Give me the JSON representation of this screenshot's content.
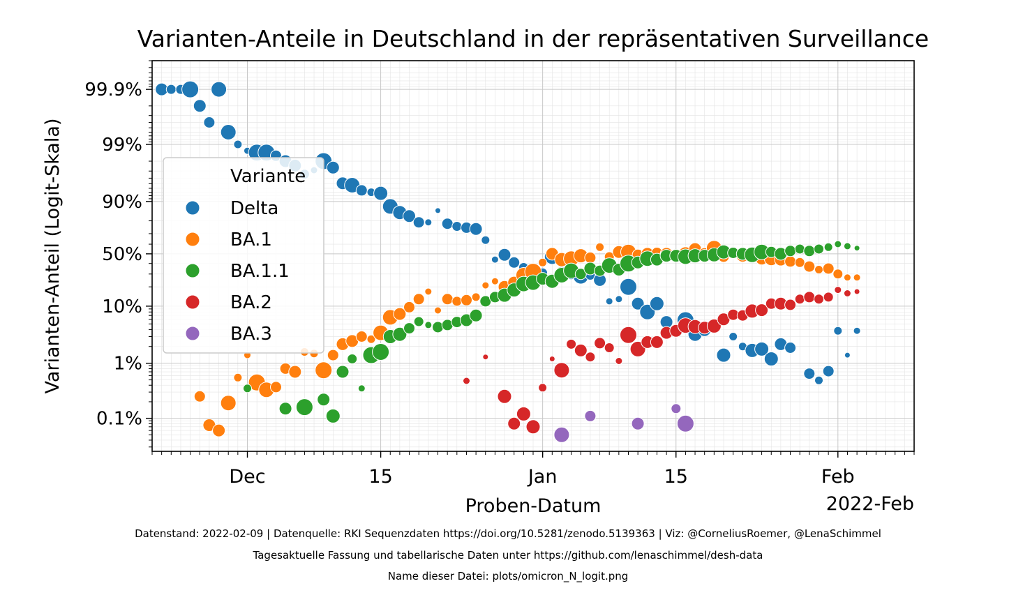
{
  "chart_data": {
    "type": "scatter",
    "title": "Varianten-Anteile in Deutschland in der repräsentativen Surveillance",
    "xlabel": "Proben-Datum",
    "ylabel": "Varianten-Anteil (Logit-Skala)",
    "y_scale": "logit",
    "x_range_days_from_nov1": [
      20,
      100
    ],
    "y_range_percent": [
      0.025,
      99.97
    ],
    "x_ticks": [
      {
        "day": 30,
        "label": "Dec"
      },
      {
        "day": 44,
        "label": "15"
      },
      {
        "day": 61,
        "label": "Jan"
      },
      {
        "day": 75,
        "label": "15"
      },
      {
        "day": 92,
        "label": "Feb"
      }
    ],
    "x_offset_label": "2022-Feb",
    "y_ticks": [
      {
        "value": 0.1,
        "label": "0.1%"
      },
      {
        "value": 1,
        "label": "1%"
      },
      {
        "value": 10,
        "label": "10%"
      },
      {
        "value": 50,
        "label": "50%"
      },
      {
        "value": 90,
        "label": "90%"
      },
      {
        "value": 99,
        "label": "99%"
      },
      {
        "value": 99.9,
        "label": "99.9%"
      }
    ],
    "grid": true,
    "legend": {
      "title": "Variante",
      "position": "center-left",
      "entries": [
        "Delta",
        "BA.1",
        "BA.1.1",
        "BA.2",
        "BA.3"
      ]
    },
    "series": [
      {
        "name": "Delta",
        "color": "#1f77b4",
        "points": [
          [
            21,
            99.9,
            9
          ],
          [
            22,
            99.9,
            7
          ],
          [
            23,
            99.9,
            7
          ],
          [
            24,
            99.9,
            12
          ],
          [
            25,
            99.8,
            9
          ],
          [
            26,
            99.6,
            8
          ],
          [
            27,
            99.9,
            11
          ],
          [
            28,
            99.4,
            11
          ],
          [
            29,
            99.0,
            6
          ],
          [
            30,
            98.7,
            5
          ],
          [
            31,
            98.6,
            12
          ],
          [
            32,
            98.6,
            12
          ],
          [
            33,
            98.4,
            8
          ],
          [
            34,
            98,
            9
          ],
          [
            35,
            97.6,
            9
          ],
          [
            36,
            96.6,
            7
          ],
          [
            37,
            97.1,
            5
          ],
          [
            38,
            98,
            12
          ],
          [
            39,
            97.4,
            9
          ],
          [
            40,
            95.1,
            9
          ],
          [
            41,
            94.7,
            11
          ],
          [
            42,
            93.5,
            8
          ],
          [
            43,
            93,
            6
          ],
          [
            44,
            92.7,
            10
          ],
          [
            45,
            88,
            11
          ],
          [
            46,
            85,
            10
          ],
          [
            47,
            83,
            9
          ],
          [
            48,
            79,
            8
          ],
          [
            49,
            79,
            5
          ],
          [
            50,
            86,
            4
          ],
          [
            51,
            78,
            8
          ],
          [
            52,
            76,
            7
          ],
          [
            53,
            75,
            8
          ],
          [
            54,
            74,
            9
          ],
          [
            55,
            64,
            6
          ],
          [
            56,
            44,
            5
          ],
          [
            57,
            49,
            9
          ],
          [
            58,
            41,
            8
          ],
          [
            59,
            36,
            7
          ],
          [
            60,
            34,
            8
          ],
          [
            61,
            31,
            7
          ],
          [
            62,
            47,
            11
          ],
          [
            63,
            31,
            9
          ],
          [
            64,
            30,
            8
          ],
          [
            65,
            28,
            11
          ],
          [
            66,
            29,
            7
          ],
          [
            67,
            25,
            9
          ],
          [
            68,
            12,
            5
          ],
          [
            69,
            13,
            5
          ],
          [
            70,
            20,
            12
          ],
          [
            71,
            11,
            9
          ],
          [
            72,
            8,
            11
          ],
          [
            73,
            11,
            10
          ],
          [
            74,
            5.4,
            9
          ],
          [
            76,
            5.8,
            12
          ],
          [
            77,
            3.3,
            10
          ],
          [
            78,
            3.9,
            9
          ],
          [
            79,
            4.6,
            8
          ],
          [
            80,
            1.4,
            10
          ],
          [
            81,
            3.0,
            6
          ],
          [
            82,
            2.0,
            6
          ],
          [
            83,
            1.7,
            10
          ],
          [
            84,
            1.8,
            10
          ],
          [
            85,
            1.2,
            10
          ],
          [
            86,
            2.2,
            9
          ],
          [
            87,
            1.9,
            8
          ],
          [
            89,
            0.65,
            8
          ],
          [
            90,
            0.49,
            6
          ],
          [
            91,
            0.72,
            8
          ],
          [
            92,
            3.8,
            6
          ],
          [
            93,
            1.4,
            4
          ],
          [
            94,
            3.8,
            5
          ]
        ]
      },
      {
        "name": "BA.1",
        "color": "#ff7f0e",
        "points": [
          [
            26,
            0.075,
            9
          ],
          [
            25,
            0.25,
            8
          ],
          [
            27,
            0.06,
            9
          ],
          [
            28,
            0.19,
            11
          ],
          [
            29,
            0.55,
            6
          ],
          [
            30,
            1.4,
            5
          ],
          [
            31,
            0.45,
            12
          ],
          [
            32,
            0.33,
            11
          ],
          [
            33,
            0.37,
            8
          ],
          [
            34,
            0.8,
            8
          ],
          [
            35,
            0.7,
            9
          ],
          [
            36,
            1.6,
            6
          ],
          [
            37,
            1.5,
            6
          ],
          [
            38,
            0.75,
            12
          ],
          [
            39,
            1.4,
            8
          ],
          [
            40,
            2.2,
            9
          ],
          [
            41,
            2.5,
            9
          ],
          [
            42,
            3.0,
            8
          ],
          [
            43,
            2.7,
            6
          ],
          [
            44,
            3.5,
            11
          ],
          [
            45,
            6.5,
            11
          ],
          [
            46,
            7.4,
            9
          ],
          [
            47,
            9.6,
            8
          ],
          [
            48,
            13,
            8
          ],
          [
            49,
            17,
            5
          ],
          [
            50,
            8.5,
            5
          ],
          [
            51,
            13,
            8
          ],
          [
            52,
            12,
            7
          ],
          [
            53,
            12.5,
            8
          ],
          [
            54,
            14,
            6
          ],
          [
            55,
            21,
            5
          ],
          [
            56,
            24,
            5
          ],
          [
            57,
            20,
            9
          ],
          [
            58,
            23,
            9
          ],
          [
            59,
            29,
            11
          ],
          [
            60,
            32,
            12
          ],
          [
            61,
            41,
            6
          ],
          [
            62,
            50,
            9
          ],
          [
            63,
            44,
            10
          ],
          [
            64,
            45,
            11
          ],
          [
            65,
            48,
            10
          ],
          [
            66,
            46,
            8
          ],
          [
            67,
            57,
            6
          ],
          [
            68,
            47,
            7
          ],
          [
            69,
            52,
            9
          ],
          [
            70,
            52,
            11
          ],
          [
            71,
            49,
            8
          ],
          [
            72,
            50,
            9
          ],
          [
            73,
            51,
            8
          ],
          [
            74,
            50,
            9
          ],
          [
            75,
            49,
            7
          ],
          [
            76,
            50,
            10
          ],
          [
            77,
            55,
            9
          ],
          [
            78,
            49,
            10
          ],
          [
            79,
            56,
            11
          ],
          [
            80,
            47,
            8
          ],
          [
            81,
            50,
            7
          ],
          [
            82,
            48,
            9
          ],
          [
            83,
            50,
            9
          ],
          [
            84,
            45,
            9
          ],
          [
            85,
            45,
            10
          ],
          [
            86,
            44,
            9
          ],
          [
            87,
            42,
            8
          ],
          [
            88,
            41,
            7
          ],
          [
            89,
            37,
            8
          ],
          [
            90,
            34,
            6
          ],
          [
            91,
            35,
            8
          ],
          [
            92,
            30,
            7
          ],
          [
            93,
            27,
            5
          ],
          [
            94,
            27,
            5
          ]
        ]
      },
      {
        "name": "BA.1.1",
        "color": "#2ca02c",
        "points": [
          [
            30,
            0.35,
            6
          ],
          [
            34,
            0.15,
            9
          ],
          [
            36,
            0.16,
            12
          ],
          [
            38,
            0.22,
            9
          ],
          [
            39,
            0.11,
            10
          ],
          [
            40,
            0.7,
            9
          ],
          [
            41,
            1.2,
            7
          ],
          [
            42,
            0.35,
            5
          ],
          [
            43,
            1.4,
            12
          ],
          [
            44,
            1.6,
            12
          ],
          [
            45,
            3.0,
            10
          ],
          [
            46,
            3.3,
            10
          ],
          [
            47,
            4.2,
            8
          ],
          [
            48,
            5.5,
            7
          ],
          [
            49,
            4.8,
            5
          ],
          [
            50,
            4.4,
            8
          ],
          [
            51,
            4.8,
            8
          ],
          [
            52,
            5.4,
            8
          ],
          [
            53,
            5.8,
            9
          ],
          [
            54,
            7.0,
            9
          ],
          [
            55,
            12,
            8
          ],
          [
            56,
            14,
            8
          ],
          [
            57,
            15,
            10
          ],
          [
            58,
            18,
            10
          ],
          [
            59,
            22,
            11
          ],
          [
            60,
            23,
            11
          ],
          [
            61,
            26,
            9
          ],
          [
            62,
            24,
            10
          ],
          [
            63,
            29,
            11
          ],
          [
            64,
            33,
            11
          ],
          [
            65,
            30,
            8
          ],
          [
            66,
            35,
            9
          ],
          [
            67,
            33,
            8
          ],
          [
            68,
            38,
            11
          ],
          [
            69,
            34,
            9
          ],
          [
            70,
            40,
            12
          ],
          [
            71,
            41,
            9
          ],
          [
            72,
            45,
            11
          ],
          [
            73,
            44,
            9
          ],
          [
            74,
            48,
            9
          ],
          [
            75,
            48,
            9
          ],
          [
            76,
            47,
            11
          ],
          [
            77,
            48,
            10
          ],
          [
            78,
            48,
            9
          ],
          [
            79,
            49,
            10
          ],
          [
            80,
            52,
            10
          ],
          [
            81,
            51,
            8
          ],
          [
            82,
            50,
            9
          ],
          [
            83,
            49,
            11
          ],
          [
            84,
            52,
            11
          ],
          [
            85,
            52,
            8
          ],
          [
            86,
            50,
            9
          ],
          [
            87,
            53,
            8
          ],
          [
            88,
            55,
            7
          ],
          [
            89,
            53,
            8
          ],
          [
            90,
            55,
            7
          ],
          [
            91,
            57,
            6
          ],
          [
            92,
            60,
            5
          ],
          [
            93,
            58,
            5
          ],
          [
            94,
            56,
            4
          ]
        ]
      },
      {
        "name": "BA.2",
        "color": "#d62728",
        "points": [
          [
            53,
            0.48,
            5
          ],
          [
            55,
            1.3,
            4
          ],
          [
            57,
            0.25,
            10
          ],
          [
            58,
            0.08,
            9
          ],
          [
            59,
            0.12,
            10
          ],
          [
            60,
            0.07,
            10
          ],
          [
            61,
            0.36,
            6
          ],
          [
            62,
            1.2,
            4
          ],
          [
            63,
            0.75,
            11
          ],
          [
            64,
            2.2,
            7
          ],
          [
            65,
            1.7,
            9
          ],
          [
            66,
            1.3,
            7
          ],
          [
            67,
            2.3,
            8
          ],
          [
            68,
            1.9,
            7
          ],
          [
            69,
            1.1,
            5
          ],
          [
            70,
            3.2,
            12
          ],
          [
            71,
            1.8,
            11
          ],
          [
            72,
            2.4,
            9
          ],
          [
            73,
            2.4,
            9
          ],
          [
            74,
            3.5,
            9
          ],
          [
            75,
            3.8,
            9
          ],
          [
            76,
            4.7,
            11
          ],
          [
            77,
            4.5,
            10
          ],
          [
            78,
            4.3,
            9
          ],
          [
            79,
            4.6,
            10
          ],
          [
            80,
            6.0,
            9
          ],
          [
            81,
            7.2,
            8
          ],
          [
            82,
            7.0,
            8
          ],
          [
            83,
            8.3,
            10
          ],
          [
            84,
            8.6,
            9
          ],
          [
            85,
            11,
            8
          ],
          [
            86,
            11,
            9
          ],
          [
            87,
            10.5,
            8
          ],
          [
            88,
            13,
            7
          ],
          [
            89,
            14,
            8
          ],
          [
            90,
            13,
            7
          ],
          [
            91,
            14,
            7
          ],
          [
            92,
            18,
            5
          ],
          [
            93,
            16,
            5
          ],
          [
            94,
            17,
            4
          ]
        ]
      },
      {
        "name": "BA.3",
        "color": "#9467bd",
        "points": [
          [
            63,
            0.05,
            11
          ],
          [
            66,
            0.11,
            8
          ],
          [
            71,
            0.08,
            9
          ],
          [
            75,
            0.15,
            7
          ],
          [
            76,
            0.08,
            12
          ]
        ]
      }
    ]
  },
  "footer": {
    "line1": "Datenstand: 2022-02-09 | Datenquelle: RKI Sequenzdaten https://doi.org/10.5281/zenodo.5139363 | Viz: @CorneliusRoemer, @LenaSchimmel",
    "line2": "Tagesaktuelle Fassung und tabellarische Daten unter https://github.com/lenaschimmel/desh-data",
    "line3": "Name dieser Datei: plots/omicron_N_logit.png"
  }
}
